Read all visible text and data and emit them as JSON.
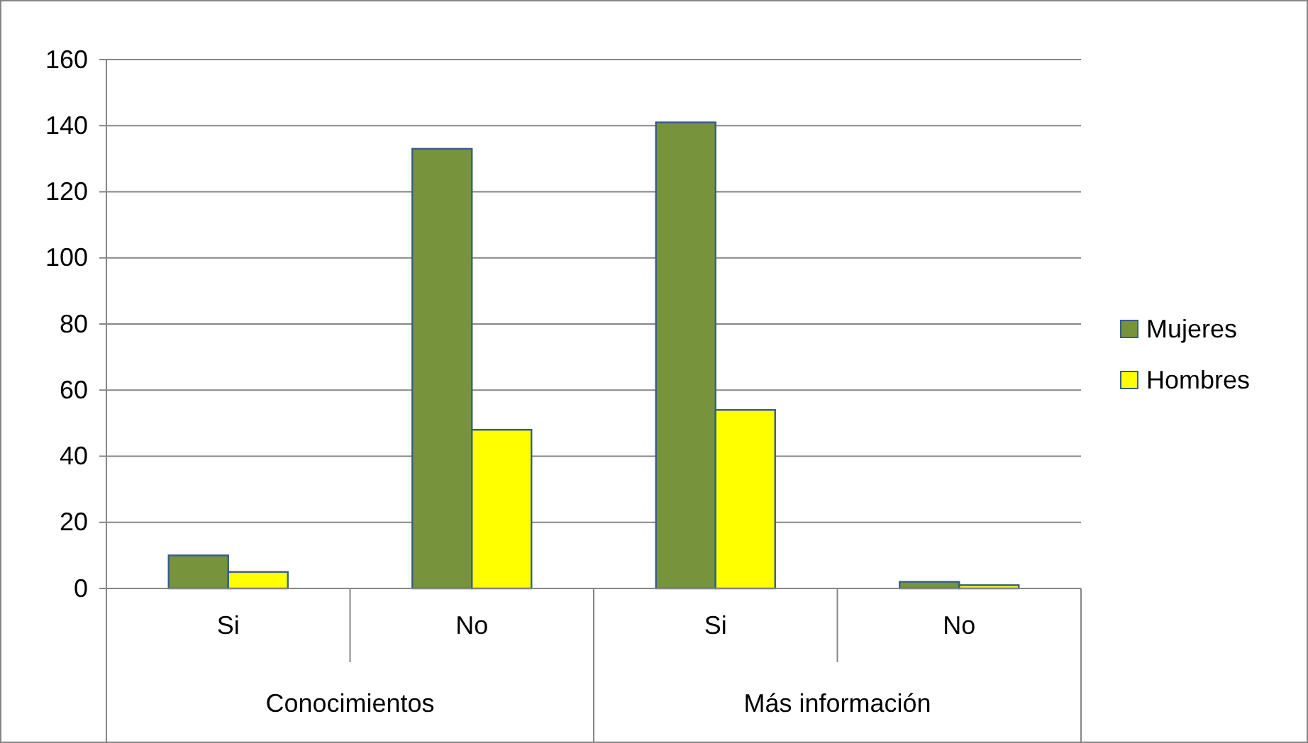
{
  "chart_data": {
    "type": "bar",
    "categories": [
      "Si",
      "No",
      "Si",
      "No"
    ],
    "series": [
      {
        "name": "Mujeres",
        "color": "#77933c",
        "values": [
          10,
          133,
          141,
          2
        ]
      },
      {
        "name": "Hombres",
        "color": "#ffff00",
        "values": [
          5,
          48,
          54,
          1
        ]
      }
    ],
    "ylim": [
      0,
      160
    ],
    "yticks": [
      0,
      20,
      40,
      60,
      80,
      100,
      120,
      140,
      160
    ],
    "grid": "y",
    "legend": "right",
    "annotations": [
      "Conocimientos",
      "Más información"
    ]
  }
}
